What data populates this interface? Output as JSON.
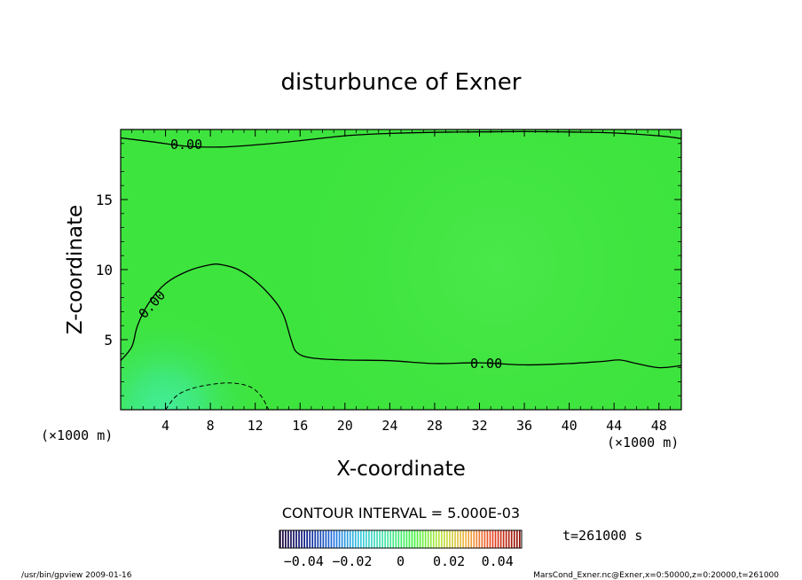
{
  "chart_data": {
    "type": "contour",
    "title": "disturbunce of Exner",
    "xlabel": "X-coordinate",
    "ylabel": "Z-coordinate",
    "x_unit": "(×1000 m)",
    "y_unit": "(×1000 m)",
    "xlim": [
      0,
      50
    ],
    "ylim": [
      0,
      20
    ],
    "x_ticks": [
      4,
      8,
      12,
      16,
      20,
      24,
      28,
      32,
      36,
      40,
      44,
      48
    ],
    "y_ticks": [
      5,
      10,
      15
    ],
    "contour_interval_text": "CONTOUR INTERVAL = 5.000E-03",
    "time_text": "t=261000 s",
    "colorbar": {
      "min": -0.05,
      "max": 0.05,
      "ticks": [
        "−0.04",
        "−0.02",
        "0",
        "0.02",
        "0.04"
      ],
      "tick_values": [
        -0.04,
        -0.02,
        0,
        0.02,
        0.04
      ],
      "colors": [
        "#1a0033",
        "#0a1e8c",
        "#1f6fe0",
        "#35c8e0",
        "#44e6a0",
        "#3ef23e",
        "#b8e63c",
        "#f0b040",
        "#e84020",
        "#8a0a00"
      ]
    },
    "contours": [
      {
        "level": 0.0,
        "label": "0.00",
        "style": "solid",
        "points": [
          [
            0,
            19.4
          ],
          [
            3,
            19.1
          ],
          [
            6,
            18.8
          ],
          [
            9,
            18.75
          ],
          [
            12,
            18.9
          ],
          [
            16,
            19.2
          ],
          [
            20,
            19.55
          ],
          [
            24,
            19.72
          ],
          [
            28,
            19.8
          ],
          [
            32,
            19.83
          ],
          [
            36,
            19.85
          ],
          [
            40,
            19.82
          ],
          [
            44,
            19.75
          ],
          [
            48,
            19.55
          ],
          [
            50,
            19.35
          ]
        ]
      },
      {
        "level": 0.0,
        "label": "0.00",
        "style": "solid",
        "points": [
          [
            0,
            3.5
          ],
          [
            1,
            4.5
          ],
          [
            1.5,
            6.0
          ],
          [
            2.5,
            7.6
          ],
          [
            4,
            9.0
          ],
          [
            6,
            9.9
          ],
          [
            8,
            10.35
          ],
          [
            9,
            10.35
          ],
          [
            10.5,
            10.0
          ],
          [
            12,
            9.2
          ],
          [
            13.5,
            8.0
          ],
          [
            14.5,
            6.8
          ],
          [
            15.2,
            5.0
          ],
          [
            15.7,
            4.1
          ],
          [
            17,
            3.7
          ],
          [
            20,
            3.55
          ],
          [
            24,
            3.5
          ],
          [
            28,
            3.3
          ],
          [
            32,
            3.35
          ],
          [
            36,
            3.2
          ],
          [
            40,
            3.3
          ],
          [
            43,
            3.45
          ],
          [
            44.5,
            3.55
          ],
          [
            46,
            3.3
          ],
          [
            48,
            3.0
          ],
          [
            50,
            3.15
          ]
        ]
      },
      {
        "level": -0.005,
        "label": "",
        "style": "dashed",
        "points": [
          [
            4,
            0.0
          ],
          [
            5,
            1.0
          ],
          [
            6.5,
            1.55
          ],
          [
            8.5,
            1.85
          ],
          [
            10,
            1.9
          ],
          [
            11.5,
            1.65
          ],
          [
            12.5,
            1.0
          ],
          [
            13.2,
            0.0
          ]
        ]
      }
    ]
  },
  "footer": {
    "left": "/usr/bin/gpview   2009-01-16",
    "right": "MarsCond_Exner.nc@Exner,x=0:50000,z=0:20000,t=261000"
  }
}
